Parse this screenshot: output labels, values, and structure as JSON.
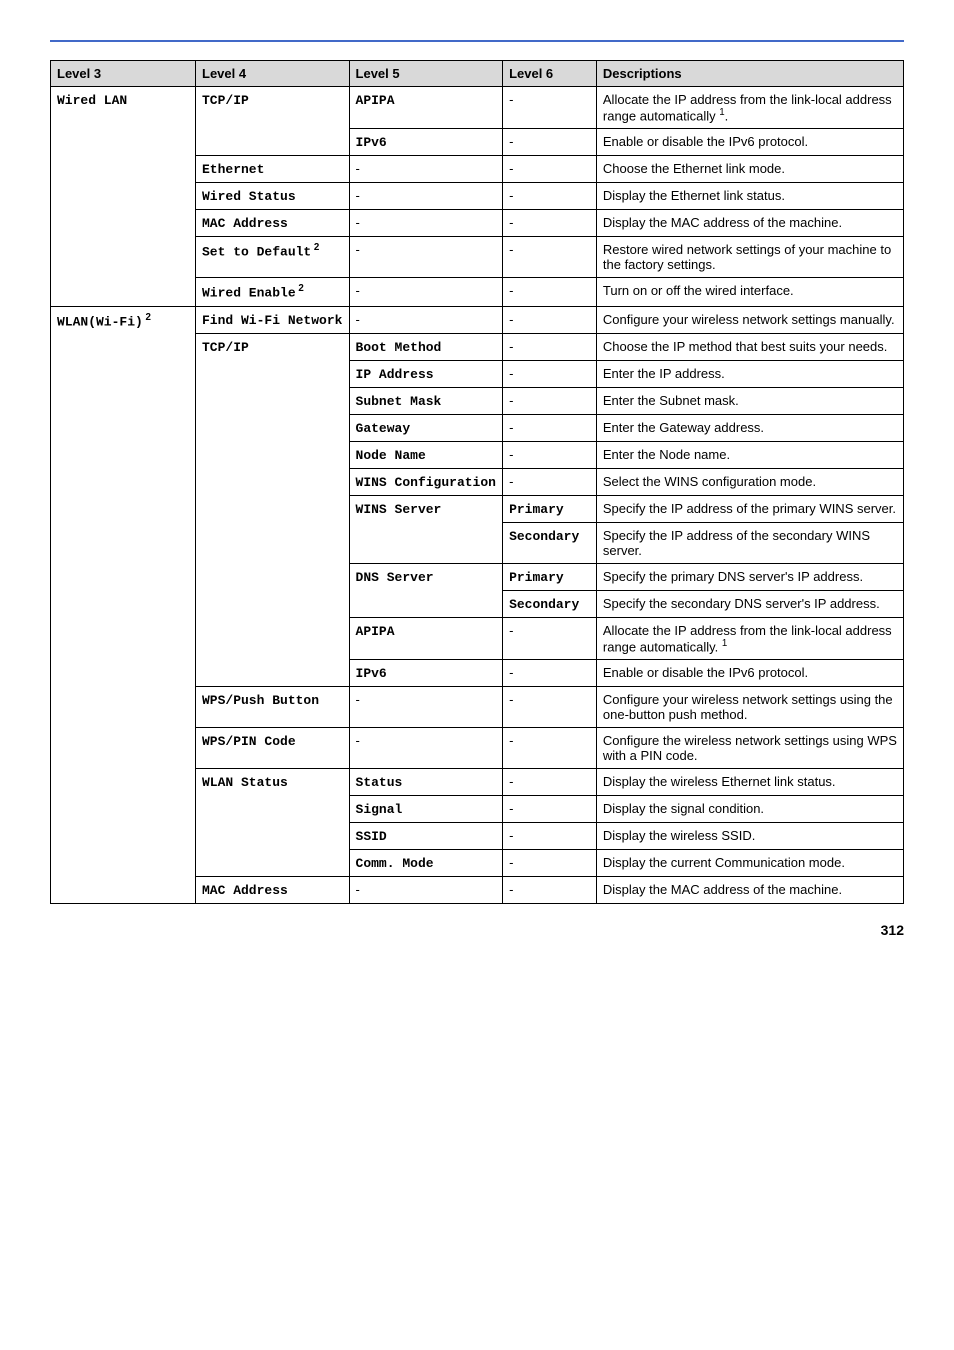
{
  "page_number": "312",
  "header": {
    "c1": "Level 3",
    "c2": "Level 4",
    "c3": "Level 5",
    "c4": "Level 6",
    "c5": "Descriptions"
  },
  "rows": [
    {
      "l3": "Wired LAN",
      "l3rs": 7,
      "l4": "TCP/IP",
      "l4rs": 2,
      "l5": "APIPA",
      "l6": "-",
      "d": "Allocate the IP address from the link-local address range automatically ",
      "dsup": "1",
      "dsuffix": "."
    },
    {
      "l5": "IPv6",
      "l6": "-",
      "d": "Enable or disable the IPv6 protocol."
    },
    {
      "l4": "Ethernet",
      "l5": "-",
      "l6": "-",
      "d": "Choose the Ethernet link mode."
    },
    {
      "l4": "Wired Status",
      "l5": "-",
      "l6": "-",
      "d": "Display the Ethernet link status."
    },
    {
      "l4": "MAC Address",
      "l5": "-",
      "l6": "-",
      "d": "Display the MAC address of the machine."
    },
    {
      "l4": "Set to Default",
      "l4sup": " 2",
      "l5": "-",
      "l6": "-",
      "d": "Restore wired network settings of your machine to the factory settings."
    },
    {
      "l4": "Wired Enable",
      "l4sup": " 2",
      "l5": "-",
      "l6": "-",
      "d": "Turn on or off the wired interface."
    },
    {
      "l3": "WLAN(Wi-Fi)",
      "l3sup": " 2",
      "l3rs": 21,
      "l4": "Find Wi-Fi Network",
      "l5": "-",
      "l6": "-",
      "d": "Configure your wireless network settings manually."
    },
    {
      "l4": "TCP/IP",
      "l4rs": 12,
      "l5": "Boot Method",
      "l6": "-",
      "d": "Choose the IP method that best suits your needs."
    },
    {
      "l5": "IP Address",
      "l6": "-",
      "d": "Enter the IP address."
    },
    {
      "l5": "Subnet Mask",
      "l6": "-",
      "d": "Enter the Subnet mask."
    },
    {
      "l5": "Gateway",
      "l6": "-",
      "d": "Enter the Gateway address."
    },
    {
      "l5": "Node Name",
      "l6": "-",
      "d": "Enter the Node name."
    },
    {
      "l5": "WINS Configuration",
      "l6": "-",
      "d": "Select the WINS configuration mode."
    },
    {
      "l5": "WINS Server",
      "l5rs": 2,
      "l6": "Primary",
      "d": "Specify the IP address of the primary WINS server."
    },
    {
      "l6": "Secondary",
      "d": "Specify the IP address of the secondary WINS server."
    },
    {
      "l5": "DNS Server",
      "l5rs": 2,
      "l6": "Primary",
      "d": "Specify the primary DNS server's IP address."
    },
    {
      "l6": "Secondary",
      "d": "Specify the secondary DNS server's IP address."
    },
    {
      "l5": "APIPA",
      "l6": "-",
      "d": "Allocate the IP address from the link-local address range automatically. ",
      "dsup": "1"
    },
    {
      "l5": "IPv6",
      "l6": "-",
      "d": "Enable or disable the IPv6 protocol."
    },
    {
      "l4": "WPS/Push Button",
      "l5": "-",
      "l6": "-",
      "d": "Configure your wireless network settings using the one-button push method."
    },
    {
      "l4": "WPS/PIN Code",
      "l5": "-",
      "l6": "-",
      "d": "Configure the wireless network settings using WPS with a PIN code."
    },
    {
      "l4": "WLAN Status",
      "l4rs": 4,
      "l5": "Status",
      "l6": "-",
      "d": "Display the wireless Ethernet link status."
    },
    {
      "l5": "Signal",
      "l6": "-",
      "d": "Display the signal condition."
    },
    {
      "l5": "SSID",
      "l6": "-",
      "d": "Display the wireless SSID."
    },
    {
      "l5": "Comm. Mode",
      "l6": "-",
      "d": "Display the current Communication mode."
    },
    {
      "l4": "MAC Address",
      "l5": "-",
      "l6": "-",
      "d": "Display the MAC address of the machine."
    }
  ]
}
